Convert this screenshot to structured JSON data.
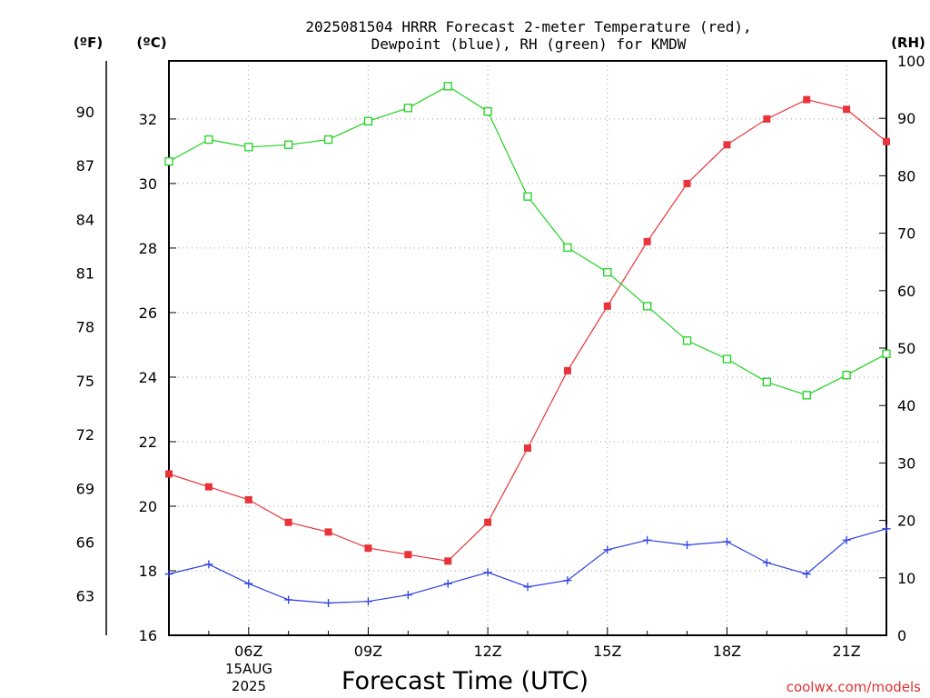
{
  "colors": {
    "temperature": "#e8333a",
    "dewpoint": "#2b3fe0",
    "rh": "#1fd21f",
    "grid": "#9a9a9a",
    "axis": "#000000",
    "attribution": "#e03030"
  },
  "chart_data": {
    "type": "line",
    "title": "2025081504 HRRR Forecast 2-meter Temperature (red),",
    "subtitle": "Dewpoint (blue), RH (green) for KMDW",
    "xlabel": "Forecast Time (UTC)",
    "date_label_line1": "15AUG",
    "date_label_line2": "2025",
    "attribution": "coolwx.com/models",
    "unit_labels": {
      "fahrenheit": "(ºF)",
      "celsius": "(ºC)",
      "rh": "(RH)"
    },
    "grid": true,
    "x": [
      "04Z",
      "05Z",
      "06Z",
      "07Z",
      "08Z",
      "09Z",
      "10Z",
      "11Z",
      "12Z",
      "13Z",
      "14Z",
      "15Z",
      "16Z",
      "17Z",
      "18Z",
      "19Z",
      "20Z",
      "21Z",
      "22Z"
    ],
    "x_tick_labels": [
      "06Z",
      "09Z",
      "12Z",
      "15Z",
      "18Z",
      "21Z"
    ],
    "y_celsius": {
      "ylim": [
        16,
        33.8
      ],
      "ticks": [
        16,
        18,
        20,
        22,
        24,
        26,
        28,
        30,
        32
      ]
    },
    "y_fahrenheit": {
      "ticks": [
        63,
        66,
        69,
        72,
        75,
        78,
        81,
        84,
        87,
        90
      ]
    },
    "y_rh": {
      "ylim": [
        0,
        100
      ],
      "ticks": [
        0,
        10,
        20,
        30,
        40,
        50,
        60,
        70,
        80,
        90,
        100
      ]
    },
    "series": [
      {
        "key": "temperature",
        "axis": "celsius",
        "marker": "filled-square",
        "values": [
          21.0,
          20.6,
          20.2,
          19.5,
          19.2,
          18.7,
          18.5,
          18.3,
          19.5,
          21.8,
          24.2,
          26.2,
          28.2,
          30.0,
          31.2,
          32.0,
          32.6,
          32.3,
          31.3
        ]
      },
      {
        "key": "dewpoint",
        "axis": "celsius",
        "marker": "plus",
        "values": [
          17.9,
          18.2,
          17.6,
          17.1,
          17.0,
          17.05,
          17.25,
          17.6,
          17.95,
          17.5,
          17.7,
          18.65,
          18.95,
          18.8,
          18.9,
          18.25,
          17.9,
          18.95,
          19.3
        ]
      },
      {
        "key": "rh",
        "axis": "rh",
        "marker": "open-square",
        "values": [
          82.5,
          86.3,
          85.0,
          85.4,
          86.3,
          89.5,
          91.8,
          95.6,
          91.2,
          76.4,
          67.5,
          63.2,
          57.3,
          51.3,
          48.1,
          44.1,
          41.8,
          45.3,
          49.0
        ]
      }
    ]
  }
}
